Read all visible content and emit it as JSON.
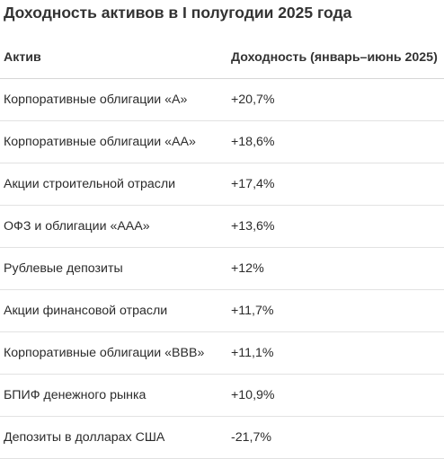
{
  "title": "Доходность активов в I полугодии 2025 года",
  "table": {
    "headers": {
      "asset": "Актив",
      "yield": "Доходность (январь–июнь 2025)"
    },
    "rows": [
      {
        "asset": "Корпоративные облигации «А»",
        "yield": "+20,7%"
      },
      {
        "asset": "Корпоративные облигации «АА»",
        "yield": "+18,6%"
      },
      {
        "asset": "Акции строительной отрасли",
        "yield": "+17,4%"
      },
      {
        "asset": "ОФЗ и облигации «ААА»",
        "yield": "+13,6%"
      },
      {
        "asset": "Рублевые депозиты",
        "yield": "+12%"
      },
      {
        "asset": "Акции финансовой отрасли",
        "yield": "+11,7%"
      },
      {
        "asset": "Корпоративные облигации «BBB»",
        "yield": "+11,1%"
      },
      {
        "asset": "БПИФ денежного рынка",
        "yield": "+10,9%"
      },
      {
        "asset": "Депозиты в долларах США",
        "yield": "-21,7%"
      }
    ]
  }
}
